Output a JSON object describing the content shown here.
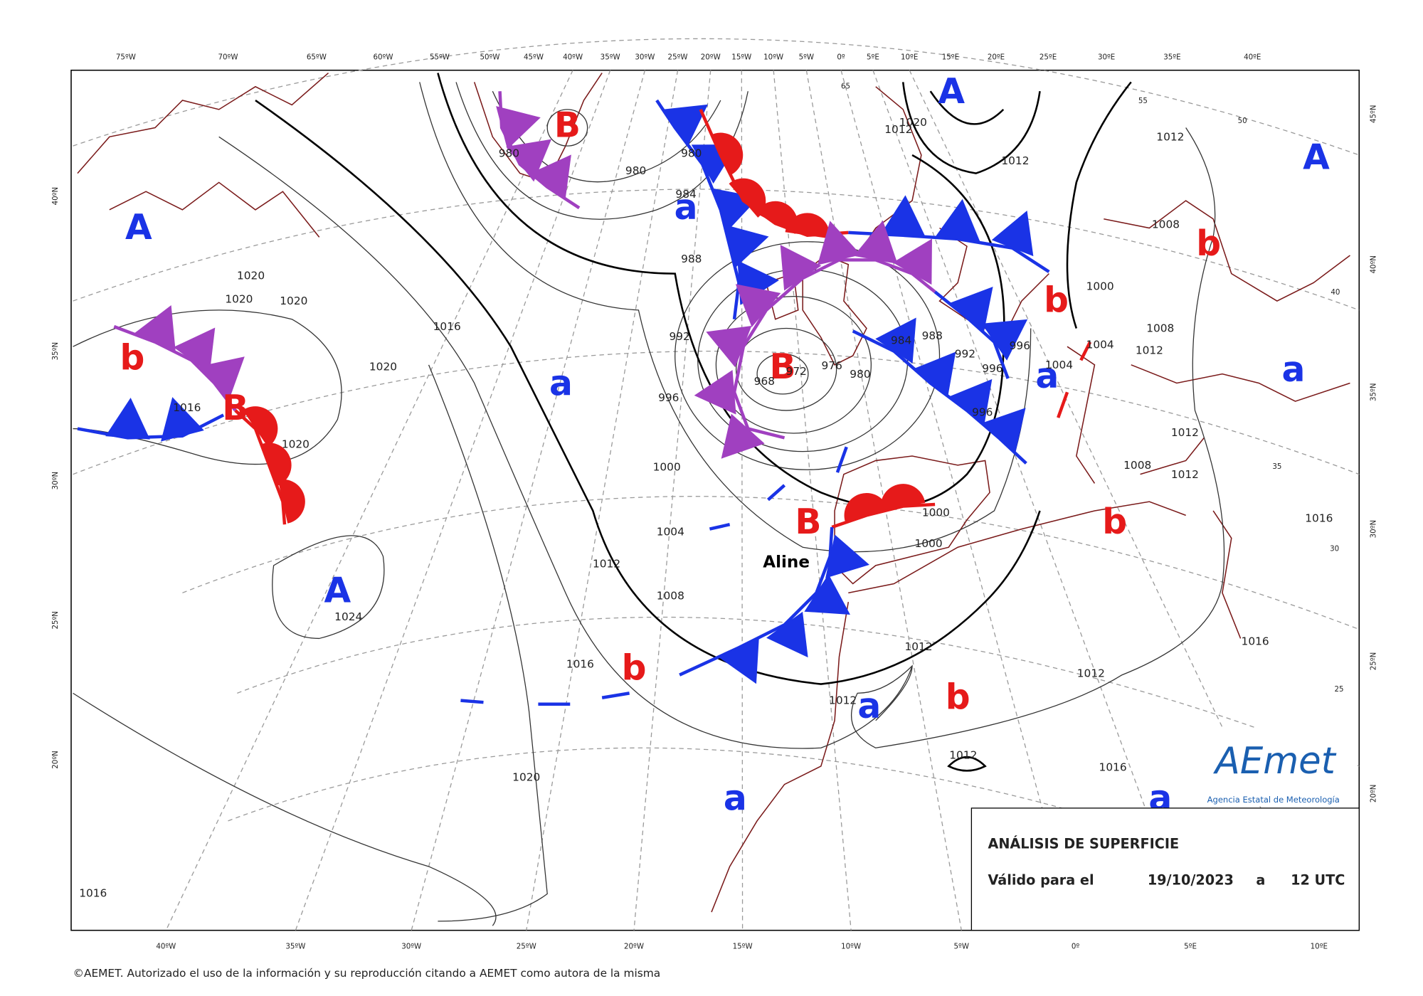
{
  "top_lon_labels": [
    "75ºW",
    "70ºW",
    "65ºW",
    "60ºW",
    "55ºW",
    "50ºW",
    "45ºW",
    "40ºW",
    "35ºW",
    "30ºW",
    "25ºW",
    "20ºW",
    "15ºW",
    "10ºW",
    "5ºW",
    "0º",
    "5ºE",
    "10ºE",
    "15ºE",
    "20ºE",
    "25ºE",
    "30ºE",
    "35ºE",
    "40ºE"
  ],
  "bottom_lon_labels": [
    "40ºW",
    "35ºW",
    "30ºW",
    "25ºW",
    "20ºW",
    "15ºW",
    "10ºW",
    "5ºW",
    "0º",
    "5ºE",
    "10ºE"
  ],
  "left_lat_labels": [
    "40ºN",
    "35ºN",
    "30ºN",
    "25ºN",
    "20ºN"
  ],
  "right_lat_labels": [
    "45ºN",
    "40ºN",
    "35ºN",
    "30ºN",
    "25ºN",
    "20ºN"
  ],
  "pressure_centers": [
    "A",
    "A",
    "A",
    "B",
    "B",
    "b",
    "B",
    "a",
    "a",
    "b",
    "b",
    "a",
    "a",
    "B",
    "b",
    "A",
    "b",
    "a",
    "b",
    "a",
    "a"
  ],
  "isobar_labels": [
    1020,
    1020,
    1020,
    1016,
    1020,
    1016,
    1020,
    1024,
    1012,
    1004,
    1000,
    1008,
    1016,
    1020,
    1016,
    996,
    992,
    988,
    984,
    980,
    980,
    980,
    976,
    972,
    968,
    980,
    984,
    988,
    992,
    996,
    996,
    996,
    1000,
    1000,
    1012,
    1012,
    1012,
    1012,
    1016,
    1016,
    1016,
    1012,
    1012,
    1008,
    1008,
    1012,
    1004,
    1004,
    1000,
    1008,
    1012,
    1012,
    1012,
    1020
  ],
  "grid_degree_labels": [
    65,
    55,
    50,
    40,
    35,
    30,
    25
  ],
  "storm_name": "Aline",
  "info_box": {
    "title": "ANÁLISIS DE SUPERFICIE",
    "valid_label": "Válido para el",
    "date": "19/10/2023",
    "at": "a",
    "time": "12 UTC"
  },
  "logo": {
    "name": "AEmet",
    "subtitle": "Agencia Estatal de Meteorología"
  },
  "footer": "©AEMET. Autorizado el uso de la información y su reproducción citando a AEMET como autora de la misma"
}
